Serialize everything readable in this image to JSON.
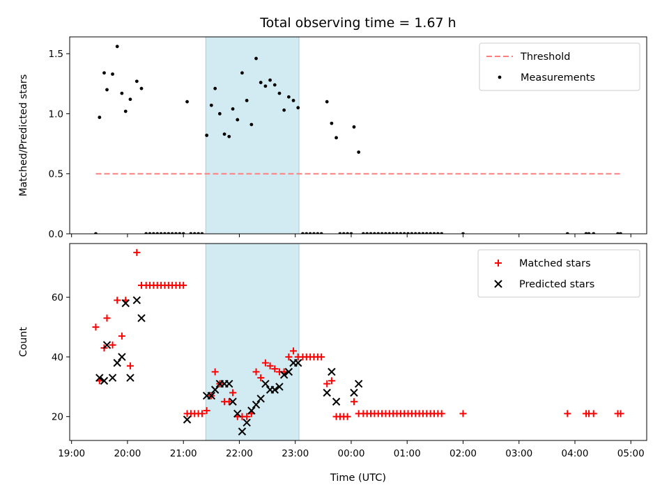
{
  "chart_data": {
    "type": "scatter",
    "title": "Total observing time = 1.67 h",
    "xlabel": "Time (UTC)",
    "x_ticks": [
      "19:00",
      "20:00",
      "21:00",
      "22:00",
      "23:00",
      "00:00",
      "01:00",
      "02:00",
      "03:00",
      "04:00",
      "05:00"
    ],
    "xlim": [
      "18:58",
      "05:17"
    ],
    "shaded_interval": {
      "start": "21:24",
      "end": "23:04",
      "color": "#add8e6"
    },
    "panels": [
      {
        "ylabel": "Matched/Predicted stars",
        "ylim": [
          0,
          1.64
        ],
        "y_ticks": [
          "0.0",
          "0.5",
          "1.0",
          "1.5"
        ],
        "legend": {
          "placement": "upper right",
          "entries": [
            "Threshold",
            "Measurements"
          ]
        },
        "threshold": {
          "name": "Threshold",
          "value": 0.5,
          "x_start": "19:26",
          "x_end": "04:50",
          "color": "#ff7f7f",
          "style": "dashed"
        },
        "series": [
          {
            "name": "Measurements",
            "marker": "dot",
            "color": "#000000",
            "points": [
              [
                "19:26",
                0.0
              ],
              [
                "19:30",
                0.97
              ],
              [
                "19:35",
                1.34
              ],
              [
                "19:38",
                1.2
              ],
              [
                "19:44",
                1.33
              ],
              [
                "19:49",
                1.56
              ],
              [
                "19:54",
                1.17
              ],
              [
                "19:58",
                1.02
              ],
              [
                "20:03",
                1.12
              ],
              [
                "20:10",
                1.27
              ],
              [
                "20:15",
                1.21
              ],
              [
                "20:20",
                0
              ],
              [
                "20:24",
                0
              ],
              [
                "20:28",
                0
              ],
              [
                "20:32",
                0
              ],
              [
                "20:36",
                0
              ],
              [
                "20:40",
                0
              ],
              [
                "20:44",
                0
              ],
              [
                "20:48",
                0
              ],
              [
                "20:52",
                0
              ],
              [
                "20:56",
                0
              ],
              [
                "21:00",
                0
              ],
              [
                "21:04",
                1.1
              ],
              [
                "21:08",
                0
              ],
              [
                "21:12",
                0
              ],
              [
                "21:16",
                0
              ],
              [
                "21:20",
                0
              ],
              [
                "21:25",
                0.82
              ],
              [
                "21:30",
                1.07
              ],
              [
                "21:34",
                1.21
              ],
              [
                "21:39",
                1.0
              ],
              [
                "21:44",
                0.83
              ],
              [
                "21:49",
                0.81
              ],
              [
                "21:53",
                1.04
              ],
              [
                "21:58",
                0.95
              ],
              [
                "22:03",
                1.34
              ],
              [
                "22:08",
                1.11
              ],
              [
                "22:13",
                0.91
              ],
              [
                "22:18",
                1.46
              ],
              [
                "22:23",
                1.26
              ],
              [
                "22:28",
                1.23
              ],
              [
                "22:33",
                1.28
              ],
              [
                "22:38",
                1.24
              ],
              [
                "22:43",
                1.17
              ],
              [
                "22:48",
                1.03
              ],
              [
                "22:53",
                1.14
              ],
              [
                "22:58",
                1.11
              ],
              [
                "23:03",
                1.05
              ],
              [
                "23:08",
                0
              ],
              [
                "23:12",
                0
              ],
              [
                "23:16",
                0
              ],
              [
                "23:20",
                0
              ],
              [
                "23:24",
                0
              ],
              [
                "23:28",
                0
              ],
              [
                "23:34",
                1.1
              ],
              [
                "23:39",
                0.92
              ],
              [
                "23:44",
                0.8
              ],
              [
                "23:48",
                0
              ],
              [
                "23:52",
                0
              ],
              [
                "23:56",
                0
              ],
              [
                "00:00",
                0
              ],
              [
                "00:03",
                0.89
              ],
              [
                "00:08",
                0.68
              ],
              [
                "00:13",
                0
              ],
              [
                "00:17",
                0
              ],
              [
                "00:21",
                0
              ],
              [
                "00:25",
                0
              ],
              [
                "00:29",
                0
              ],
              [
                "00:33",
                0
              ],
              [
                "00:37",
                0
              ],
              [
                "00:41",
                0
              ],
              [
                "00:45",
                0
              ],
              [
                "00:49",
                0
              ],
              [
                "00:53",
                0
              ],
              [
                "00:57",
                0
              ],
              [
                "01:01",
                0
              ],
              [
                "01:05",
                0
              ],
              [
                "01:09",
                0
              ],
              [
                "01:13",
                0
              ],
              [
                "01:17",
                0
              ],
              [
                "01:21",
                0
              ],
              [
                "01:25",
                0
              ],
              [
                "01:29",
                0
              ],
              [
                "01:33",
                0
              ],
              [
                "01:37",
                0
              ],
              [
                "02:00",
                0
              ],
              [
                "03:52",
                0
              ],
              [
                "04:12",
                0
              ],
              [
                "04:15",
                0
              ],
              [
                "04:20",
                0
              ],
              [
                "04:46",
                0
              ],
              [
                "04:49",
                0
              ]
            ]
          }
        ]
      },
      {
        "ylabel": "Count",
        "ylim": [
          12,
          78
        ],
        "y_ticks": [
          "20",
          "40",
          "60"
        ],
        "legend": {
          "placement": "upper right",
          "entries": [
            "Matched stars",
            "Predicted stars"
          ]
        },
        "series": [
          {
            "name": "Matched stars",
            "marker": "plus",
            "color": "#ff0000",
            "points": [
              [
                "19:26",
                50
              ],
              [
                "19:30",
                32
              ],
              [
                "19:35",
                43
              ],
              [
                "19:38",
                53
              ],
              [
                "19:44",
                44
              ],
              [
                "19:49",
                59
              ],
              [
                "19:54",
                47
              ],
              [
                "19:58",
                59
              ],
              [
                "20:03",
                37
              ],
              [
                "20:10",
                75
              ],
              [
                "20:15",
                64
              ],
              [
                "20:20",
                64
              ],
              [
                "20:24",
                64
              ],
              [
                "20:28",
                64
              ],
              [
                "20:32",
                64
              ],
              [
                "20:36",
                64
              ],
              [
                "20:40",
                64
              ],
              [
                "20:44",
                64
              ],
              [
                "20:48",
                64
              ],
              [
                "20:52",
                64
              ],
              [
                "20:56",
                64
              ],
              [
                "21:00",
                64
              ],
              [
                "21:04",
                21
              ],
              [
                "21:08",
                21
              ],
              [
                "21:12",
                21
              ],
              [
                "21:16",
                21
              ],
              [
                "21:20",
                21
              ],
              [
                "21:25",
                22
              ],
              [
                "21:30",
                27
              ],
              [
                "21:34",
                35
              ],
              [
                "21:39",
                31
              ],
              [
                "21:44",
                25
              ],
              [
                "21:49",
                25
              ],
              [
                "21:53",
                28
              ],
              [
                "21:58",
                20
              ],
              [
                "22:03",
                20
              ],
              [
                "22:08",
                20
              ],
              [
                "22:13",
                21
              ],
              [
                "22:18",
                35
              ],
              [
                "22:23",
                33
              ],
              [
                "22:28",
                38
              ],
              [
                "22:33",
                37
              ],
              [
                "22:38",
                36
              ],
              [
                "22:43",
                35
              ],
              [
                "22:48",
                35
              ],
              [
                "22:53",
                40
              ],
              [
                "22:58",
                42
              ],
              [
                "23:03",
                40
              ],
              [
                "23:08",
                40
              ],
              [
                "23:12",
                40
              ],
              [
                "23:16",
                40
              ],
              [
                "23:20",
                40
              ],
              [
                "23:24",
                40
              ],
              [
                "23:28",
                40
              ],
              [
                "23:34",
                31
              ],
              [
                "23:39",
                32
              ],
              [
                "23:44",
                20
              ],
              [
                "23:48",
                20
              ],
              [
                "23:52",
                20
              ],
              [
                "23:56",
                20
              ],
              [
                "00:03",
                25
              ],
              [
                "00:08",
                21
              ],
              [
                "00:13",
                21
              ],
              [
                "00:17",
                21
              ],
              [
                "00:21",
                21
              ],
              [
                "00:25",
                21
              ],
              [
                "00:29",
                21
              ],
              [
                "00:33",
                21
              ],
              [
                "00:37",
                21
              ],
              [
                "00:41",
                21
              ],
              [
                "00:45",
                21
              ],
              [
                "00:49",
                21
              ],
              [
                "00:53",
                21
              ],
              [
                "00:57",
                21
              ],
              [
                "01:01",
                21
              ],
              [
                "01:05",
                21
              ],
              [
                "01:09",
                21
              ],
              [
                "01:13",
                21
              ],
              [
                "01:17",
                21
              ],
              [
                "01:21",
                21
              ],
              [
                "01:25",
                21
              ],
              [
                "01:29",
                21
              ],
              [
                "01:33",
                21
              ],
              [
                "01:37",
                21
              ],
              [
                "02:00",
                21
              ],
              [
                "03:52",
                21
              ],
              [
                "04:12",
                21
              ],
              [
                "04:15",
                21
              ],
              [
                "04:20",
                21
              ],
              [
                "04:46",
                21
              ],
              [
                "04:49",
                21
              ]
            ]
          },
          {
            "name": "Predicted stars",
            "marker": "x",
            "color": "#000000",
            "points": [
              [
                "19:30",
                33
              ],
              [
                "19:35",
                32
              ],
              [
                "19:38",
                44
              ],
              [
                "19:44",
                33
              ],
              [
                "19:49",
                38
              ],
              [
                "19:54",
                40
              ],
              [
                "19:58",
                58
              ],
              [
                "20:03",
                33
              ],
              [
                "20:10",
                59
              ],
              [
                "20:15",
                53
              ],
              [
                "21:04",
                19
              ],
              [
                "21:25",
                27
              ],
              [
                "21:30",
                27
              ],
              [
                "21:34",
                29
              ],
              [
                "21:39",
                31
              ],
              [
                "21:44",
                31
              ],
              [
                "21:49",
                31
              ],
              [
                "21:53",
                25
              ],
              [
                "21:58",
                21
              ],
              [
                "22:03",
                15
              ],
              [
                "22:08",
                18
              ],
              [
                "22:13",
                22
              ],
              [
                "22:18",
                24
              ],
              [
                "22:23",
                26
              ],
              [
                "22:28",
                31
              ],
              [
                "22:33",
                29
              ],
              [
                "22:38",
                29
              ],
              [
                "22:43",
                30
              ],
              [
                "22:48",
                34
              ],
              [
                "22:53",
                35
              ],
              [
                "22:58",
                38
              ],
              [
                "23:03",
                38
              ],
              [
                "23:34",
                28
              ],
              [
                "23:39",
                35
              ],
              [
                "23:44",
                25
              ],
              [
                "00:03",
                28
              ],
              [
                "00:08",
                31
              ]
            ]
          }
        ]
      }
    ]
  }
}
